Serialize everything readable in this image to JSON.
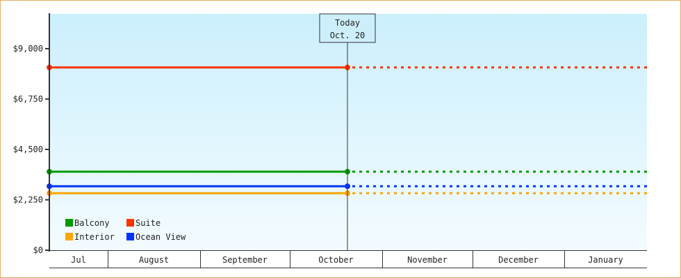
{
  "chart_data": {
    "type": "line",
    "title": "",
    "xlabel": "",
    "ylabel": "",
    "ylim": [
      0,
      10550
    ],
    "y_ticks": [
      "$0",
      "$2,250",
      "$4,500",
      "$6,750",
      "$9,000"
    ],
    "y_tick_values": [
      0,
      2250,
      4500,
      6750,
      9000
    ],
    "x_categories": [
      "Jul",
      "August",
      "September",
      "October",
      "November",
      "December",
      "January"
    ],
    "today_marker": {
      "line1": "Today",
      "line2": "Oct. 20"
    },
    "grid": false,
    "legend_position": "bottom-left",
    "background_gradient": [
      "#cbeffc",
      "#f3fbff"
    ],
    "series": [
      {
        "name": "Balcony",
        "color": "#009900",
        "value": 3500,
        "forecast": "dotted after today"
      },
      {
        "name": "Suite",
        "color": "#ff3300",
        "value": 8160,
        "forecast": "dotted after today"
      },
      {
        "name": "Interior",
        "color": "#ffa500",
        "value": 2550,
        "forecast": "dotted after today"
      },
      {
        "name": "Ocean View",
        "color": "#0033ff",
        "value": 2860,
        "forecast": "dotted after today"
      }
    ]
  }
}
